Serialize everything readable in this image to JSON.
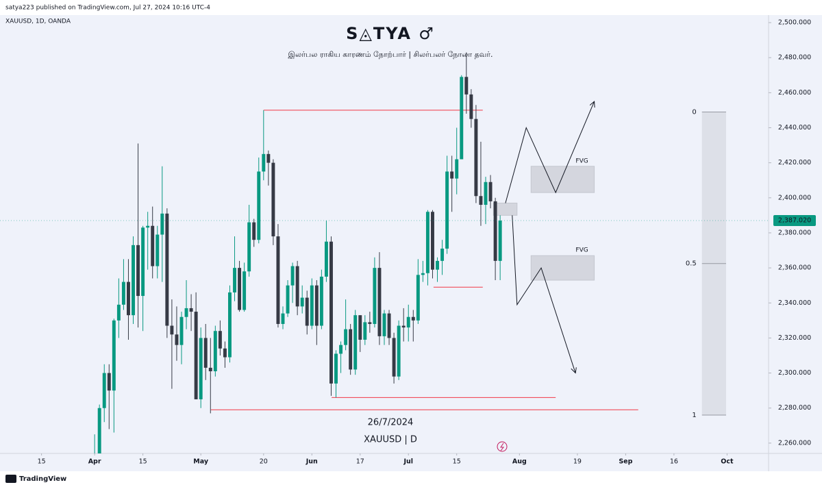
{
  "chart_data": {
    "type": "candlestick",
    "header": "satya223 published on TradingView.com, Jul 27, 2024 10:16 UTC-4",
    "symbol": "XAUUSD, 1D, OANDA",
    "title": "S◬TYA ♂",
    "subtitle": "இலர்பல ராகிய காரணம் நோற்பார் | சிலர்பலர் நோலா தவர்.",
    "date_note": "26/7/2024",
    "symbol_note": "XAUUSD | D",
    "footer": "TradingView",
    "up_color": "#089981",
    "down_color": "#363a45",
    "level_color": "#f23645",
    "x": [
      0,
      1,
      2,
      3,
      4,
      5,
      6,
      7,
      8,
      9,
      10,
      11,
      12,
      13,
      14,
      15,
      16,
      17,
      18,
      19,
      20,
      21,
      22,
      23,
      24,
      25,
      26,
      27,
      28,
      29,
      30,
      31,
      32,
      33,
      34,
      35,
      36,
      37,
      38,
      39,
      40,
      41,
      42,
      43,
      44,
      45,
      46,
      47,
      48,
      49,
      50,
      51,
      52,
      53,
      54,
      55,
      56,
      57,
      58,
      59,
      60,
      61,
      62,
      63,
      64,
      65,
      66,
      67,
      68,
      69,
      70,
      71,
      72,
      73,
      74,
      75,
      76,
      77,
      78,
      79,
      80,
      81,
      82,
      83,
      84
    ],
    "open": [
      2230,
      2251,
      2280,
      2300,
      2290,
      2330,
      2339,
      2352,
      2333,
      2373,
      2344,
      2383,
      2384,
      2361,
      2379,
      2391,
      2327,
      2322,
      2316,
      2332,
      2337,
      2335,
      2285,
      2320,
      2303,
      2301,
      2324,
      2314,
      2309,
      2346,
      2360,
      2336,
      2358,
      2386,
      2376,
      2415,
      2425,
      2420,
      2378,
      2328,
      2334,
      2350,
      2361,
      2338,
      2343,
      2327,
      2350,
      2327,
      2355,
      2375,
      2294,
      2311,
      2316,
      2325,
      2302,
      2333,
      2319,
      2329,
      2328,
      2360,
      2321,
      2334,
      2320,
      2298,
      2327,
      2326,
      2332,
      2330,
      2356,
      2357,
      2392,
      2359,
      2364,
      2371,
      2415,
      2411,
      2422,
      2469,
      2459,
      2445,
      2401,
      2396,
      2409,
      2398,
      2364
    ],
    "high": [
      2265,
      2282,
      2305,
      2305,
      2331,
      2354,
      2365,
      2365,
      2378,
      2431,
      2384,
      2392,
      2395,
      2384,
      2418,
      2394,
      2342,
      2338,
      2335,
      2353,
      2345,
      2346,
      2326,
      2328,
      2320,
      2327,
      2330,
      2318,
      2350,
      2378,
      2364,
      2363,
      2396,
      2388,
      2423,
      2450,
      2427,
      2422,
      2385,
      2338,
      2353,
      2363,
      2364,
      2350,
      2347,
      2354,
      2353,
      2359,
      2387,
      2378,
      2313,
      2318,
      2342,
      2328,
      2336,
      2333,
      2333,
      2335,
      2366,
      2369,
      2336,
      2336,
      2323,
      2330,
      2337,
      2339,
      2336,
      2365,
      2364,
      2393,
      2393,
      2366,
      2376,
      2424,
      2424,
      2440,
      2470,
      2483,
      2462,
      2453,
      2432,
      2412,
      2413,
      2400,
      2390
    ],
    "low": [
      2228,
      2241,
      2272,
      2268,
      2266,
      2320,
      2336,
      2319,
      2328,
      2326,
      2324,
      2359,
      2354,
      2354,
      2352,
      2320,
      2291,
      2307,
      2305,
      2325,
      2324,
      2285,
      2280,
      2296,
      2277,
      2298,
      2310,
      2303,
      2306,
      2341,
      2335,
      2335,
      2355,
      2372,
      2374,
      2410,
      2407,
      2373,
      2326,
      2325,
      2332,
      2340,
      2333,
      2334,
      2322,
      2325,
      2316,
      2325,
      2352,
      2287,
      2286,
      2300,
      2313,
      2299,
      2299,
      2312,
      2316,
      2323,
      2326,
      2316,
      2316,
      2316,
      2294,
      2296,
      2318,
      2318,
      2318,
      2328,
      2352,
      2350,
      2354,
      2352,
      2356,
      2368,
      2392,
      2402,
      2422,
      2448,
      2440,
      2397,
      2384,
      2385,
      2394,
      2353,
      2353
    ],
    "close": [
      2251,
      2280,
      2300,
      2290,
      2330,
      2339,
      2352,
      2333,
      2373,
      2344,
      2383,
      2384,
      2361,
      2379,
      2391,
      2327,
      2322,
      2316,
      2332,
      2337,
      2335,
      2285,
      2320,
      2303,
      2301,
      2324,
      2314,
      2309,
      2346,
      2360,
      2336,
      2358,
      2386,
      2376,
      2415,
      2425,
      2420,
      2378,
      2328,
      2334,
      2350,
      2361,
      2338,
      2343,
      2327,
      2350,
      2327,
      2355,
      2375,
      2294,
      2311,
      2316,
      2325,
      2302,
      2333,
      2319,
      2329,
      2328,
      2360,
      2321,
      2334,
      2320,
      2298,
      2327,
      2326,
      2332,
      2330,
      2356,
      2357,
      2392,
      2359,
      2364,
      2371,
      2415,
      2411,
      2422,
      2469,
      2459,
      2445,
      2401,
      2396,
      2409,
      2398,
      2364,
      2387
    ],
    "xlim": [
      -19.6,
      139.6
    ],
    "xticks": [
      {
        "value": -11,
        "label": "15"
      },
      {
        "value": 0,
        "label": "Apr"
      },
      {
        "value": 10,
        "label": "15"
      },
      {
        "value": 22,
        "label": "May"
      },
      {
        "value": 35,
        "label": "20"
      },
      {
        "value": 45,
        "label": "Jun"
      },
      {
        "value": 55,
        "label": "17"
      },
      {
        "value": 65,
        "label": "Jul"
      },
      {
        "value": 75,
        "label": "15"
      },
      {
        "value": 88,
        "label": "Aug"
      },
      {
        "value": 100,
        "label": "19"
      },
      {
        "value": 110,
        "label": "Sep"
      },
      {
        "value": 120,
        "label": "16"
      },
      {
        "value": 131,
        "label": "Oct"
      }
    ],
    "ylim": [
      2254.1,
      2504.3
    ],
    "yticks": [
      {
        "value": 2260,
        "label": "2,260.000"
      },
      {
        "value": 2280,
        "label": "2,280.000"
      },
      {
        "value": 2300,
        "label": "2,300.000"
      },
      {
        "value": 2320,
        "label": "2,320.000"
      },
      {
        "value": 2340,
        "label": "2,340.000"
      },
      {
        "value": 2360,
        "label": "2,360.000"
      },
      {
        "value": 2380,
        "label": "2,380.000"
      },
      {
        "value": 2400,
        "label": "2,400.000"
      },
      {
        "value": 2420,
        "label": "2,420.000"
      },
      {
        "value": 2440,
        "label": "2,440.000"
      },
      {
        "value": 2460,
        "label": "2,460.000"
      },
      {
        "value": 2480,
        "label": "2,480.000"
      },
      {
        "value": 2500,
        "label": "2,500.000"
      }
    ],
    "last_price": {
      "value": 2387.02,
      "label": "2,387.020"
    },
    "levels": [
      {
        "value": 2450,
        "x": [
          35,
          80.4
        ]
      },
      {
        "value": 2349,
        "x": [
          70.2,
          80.4
        ]
      },
      {
        "value": 2286,
        "x": [
          49.1,
          95.5
        ]
      },
      {
        "value": 2279,
        "x": [
          24.1,
          112.6
        ]
      }
    ],
    "zones": [
      {
        "label": "FVG",
        "y": [
          2403,
          2418
        ],
        "x": [
          90.4,
          103.5
        ]
      },
      {
        "label": "FVG",
        "y": [
          2353,
          2367
        ],
        "x": [
          90.4,
          103.5
        ]
      },
      {
        "y": [
          2390,
          2397
        ],
        "x": [
          82.6,
          87.5
        ]
      }
    ],
    "paths": [
      {
        "x": [
          85.1,
          89.4,
          95.5,
          103.5
        ],
        "y": [
          2397,
          2440,
          2403,
          2455
        ]
      },
      {
        "x": [
          86.5,
          87.5,
          92.5,
          99.6
        ],
        "y": [
          2390,
          2339,
          2360,
          2300
        ]
      }
    ],
    "fib": {
      "x": [
        125.8,
        130.8
      ],
      "levels": [
        {
          "value": 2449,
          "label": "0"
        },
        {
          "value": 2362.5,
          "label": "0.5"
        },
        {
          "value": 2276,
          "label": "1"
        }
      ]
    }
  }
}
